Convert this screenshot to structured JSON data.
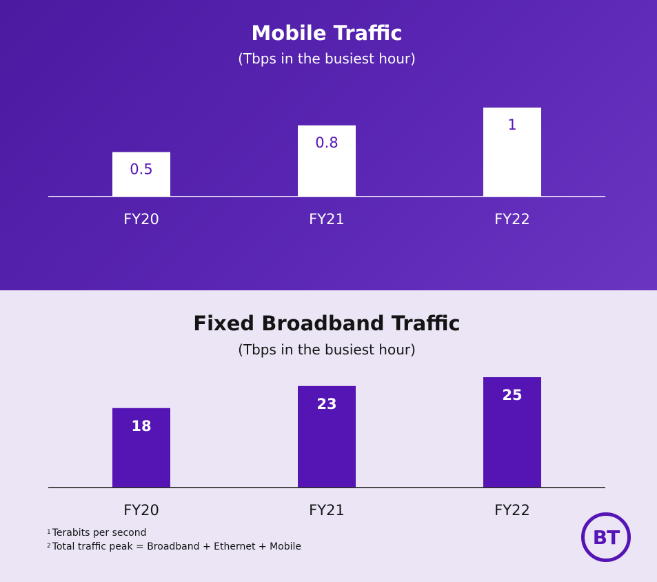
{
  "colors": {
    "mobile_bg": "#5521ac",
    "fixed_bg": "#ebe5f5",
    "mobile_bar": "#ffffff",
    "mobile_value_text": "#5514b4",
    "fixed_bar": "#5514b4",
    "fixed_value_text": "#ffffff",
    "mobile_text": "#ffffff",
    "fixed_text": "#141414"
  },
  "chart_data": [
    {
      "type": "bar",
      "title": "Mobile Traffic",
      "subtitle": "(Tbps in the busiest hour)",
      "categories": [
        "FY20",
        "FY21",
        "FY22"
      ],
      "values": [
        0.5,
        0.8,
        1
      ],
      "value_labels": [
        "0.5",
        "0.8",
        "1"
      ],
      "ylim": [
        0,
        1.0
      ],
      "grid": false
    },
    {
      "type": "bar",
      "title": "Fixed Broadband Traffic",
      "subtitle": "(Tbps in the busiest hour)",
      "categories": [
        "FY20",
        "FY21",
        "FY22"
      ],
      "values": [
        18,
        23,
        25
      ],
      "value_labels": [
        "18",
        "23",
        "25"
      ],
      "ylim": [
        0,
        25
      ],
      "grid": false
    }
  ],
  "footnotes": [
    {
      "marker": "1",
      "text": "Terabits per second"
    },
    {
      "marker": "2",
      "text": "Total traffic peak = Broadband + Ethernet + Mobile"
    }
  ],
  "logo": {
    "text": "BT"
  }
}
